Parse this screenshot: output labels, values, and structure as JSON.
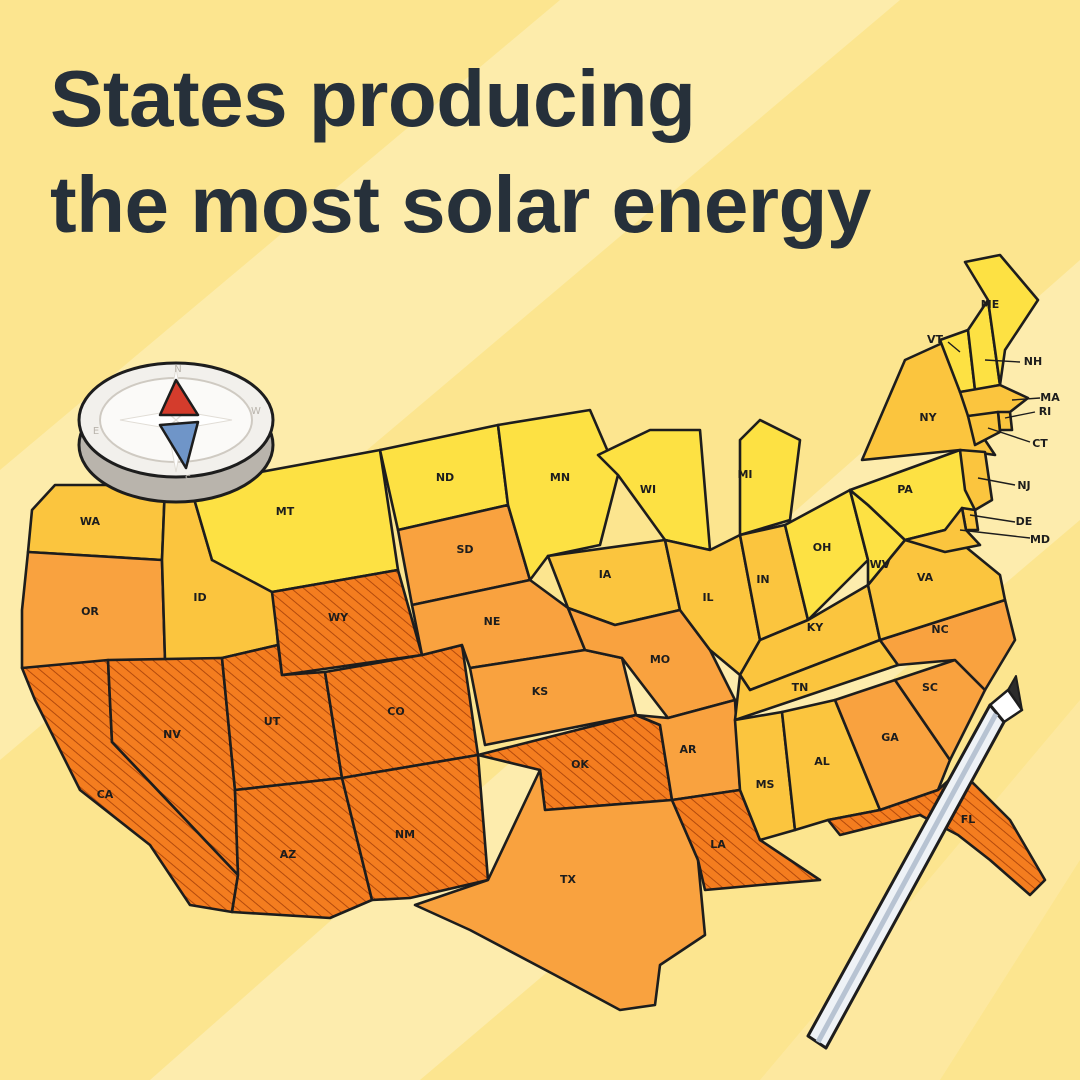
{
  "title": {
    "line1": "States producing",
    "line2": "the most solar energy"
  },
  "legend_levels": {
    "low": "#fde143",
    "mid_low": "#fbc53e",
    "mid": "#f9a23f",
    "high": "#f47d1f"
  },
  "states": [
    {
      "abbr": "WA",
      "level": "mid_low"
    },
    {
      "abbr": "OR",
      "level": "mid"
    },
    {
      "abbr": "CA",
      "level": "high"
    },
    {
      "abbr": "ID",
      "level": "mid_low"
    },
    {
      "abbr": "NV",
      "level": "high"
    },
    {
      "abbr": "UT",
      "level": "high"
    },
    {
      "abbr": "AZ",
      "level": "high"
    },
    {
      "abbr": "MT",
      "level": "low"
    },
    {
      "abbr": "WY",
      "level": "high"
    },
    {
      "abbr": "CO",
      "level": "high"
    },
    {
      "abbr": "NM",
      "level": "high"
    },
    {
      "abbr": "ND",
      "level": "low"
    },
    {
      "abbr": "SD",
      "level": "mid"
    },
    {
      "abbr": "NE",
      "level": "mid"
    },
    {
      "abbr": "KS",
      "level": "mid"
    },
    {
      "abbr": "OK",
      "level": "high"
    },
    {
      "abbr": "TX",
      "level": "mid"
    },
    {
      "abbr": "MN",
      "level": "low"
    },
    {
      "abbr": "IA",
      "level": "mid_low"
    },
    {
      "abbr": "MO",
      "level": "mid"
    },
    {
      "abbr": "AR",
      "level": "mid"
    },
    {
      "abbr": "LA",
      "level": "high"
    },
    {
      "abbr": "WI",
      "level": "low"
    },
    {
      "abbr": "IL",
      "level": "mid_low"
    },
    {
      "abbr": "MI",
      "level": "low"
    },
    {
      "abbr": "IN",
      "level": "mid_low"
    },
    {
      "abbr": "OH",
      "level": "low"
    },
    {
      "abbr": "KY",
      "level": "mid_low"
    },
    {
      "abbr": "TN",
      "level": "mid_low"
    },
    {
      "abbr": "MS",
      "level": "mid_low"
    },
    {
      "abbr": "AL",
      "level": "mid_low"
    },
    {
      "abbr": "GA",
      "level": "mid"
    },
    {
      "abbr": "FL",
      "level": "high"
    },
    {
      "abbr": "SC",
      "level": "mid"
    },
    {
      "abbr": "NC",
      "level": "mid"
    },
    {
      "abbr": "VA",
      "level": "mid_low"
    },
    {
      "abbr": "WV",
      "level": "low"
    },
    {
      "abbr": "PA",
      "level": "low"
    },
    {
      "abbr": "NY",
      "level": "mid_low"
    },
    {
      "abbr": "VT",
      "level": "low"
    },
    {
      "abbr": "NH",
      "level": "low"
    },
    {
      "abbr": "ME",
      "level": "low"
    },
    {
      "abbr": "MA",
      "level": "mid_low"
    },
    {
      "abbr": "RI",
      "level": "mid_low"
    },
    {
      "abbr": "CT",
      "level": "mid_low"
    },
    {
      "abbr": "NJ",
      "level": "mid_low"
    },
    {
      "abbr": "DE",
      "level": "mid_low"
    },
    {
      "abbr": "MD",
      "level": "mid_low"
    }
  ],
  "compass": {
    "letters": [
      "N",
      "E",
      "S",
      "W"
    ]
  },
  "icons": [
    "compass-icon",
    "pencil-icon"
  ]
}
